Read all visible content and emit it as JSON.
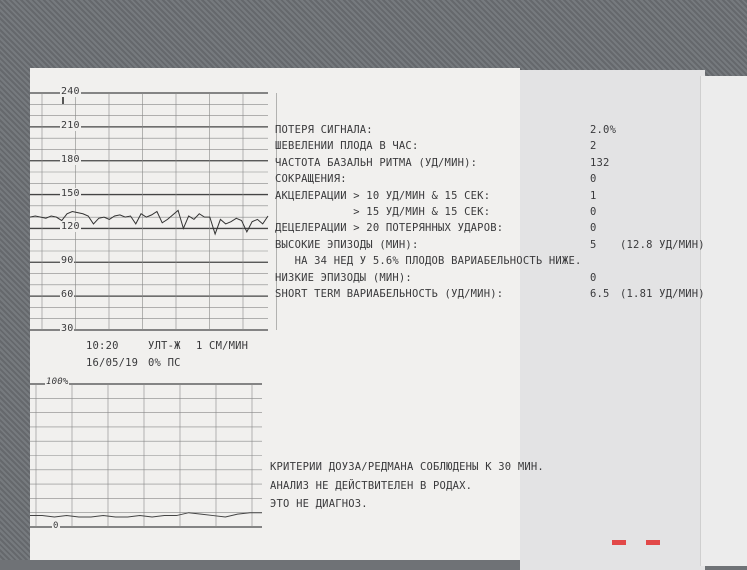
{
  "fhr_chart": {
    "y_ticks": [
      "240",
      "210",
      "180",
      "150",
      "120",
      "90",
      "60",
      "30"
    ],
    "time": "10:20",
    "mode": "УЛТ-Ж",
    "speed": "1 СМ/МИН",
    "date": "16/05/19",
    "signal_loss": "0% ПС"
  },
  "toco_chart": {
    "top_label": "100%",
    "bottom_label": "0"
  },
  "chart_data": [
    {
      "type": "line",
      "ylabel": "",
      "ylim": [
        30,
        240
      ],
      "y_ticks": [
        30,
        60,
        90,
        120,
        150,
        180,
        210,
        240
      ],
      "grid": true,
      "series": [
        {
          "values": [
            130,
            131,
            130,
            129,
            131,
            130,
            127,
            133,
            135,
            134,
            133,
            131,
            124,
            129,
            130,
            128,
            131,
            132,
            130,
            131,
            124,
            133,
            130,
            132,
            135,
            125,
            128,
            132,
            136,
            120,
            131,
            128,
            133,
            130,
            130,
            115,
            128,
            124,
            126,
            129,
            127,
            117,
            126,
            128,
            124,
            131
          ]
        }
      ]
    },
    {
      "type": "line",
      "ylabel": "",
      "ylim": [
        0,
        100
      ],
      "grid": true,
      "series": [
        {
          "values": [
            8,
            8,
            7,
            8,
            7,
            7,
            8,
            7,
            7,
            8,
            7,
            8,
            8,
            10,
            9,
            8,
            7,
            9,
            10,
            10
          ]
        }
      ]
    }
  ],
  "report": {
    "rows": [
      {
        "label": "ПОТЕРЯ СИГНАЛА:",
        "value": "2.0%",
        "extra": ""
      },
      {
        "label": "ШЕВЕЛЕНИИ ПЛОДА В ЧАС:",
        "value": "2",
        "extra": ""
      },
      {
        "label": "ЧАСТОТА БАЗАЛЬН РИТМА (УД/МИН):",
        "value": "132",
        "extra": ""
      },
      {
        "label": "СОКРАЩЕНИЯ:",
        "value": "0",
        "extra": ""
      },
      {
        "label": "АКЦЕЛЕРАЦИИ > 10 УД/МИН & 15 СЕК:",
        "value": "1",
        "extra": ""
      },
      {
        "label": "            > 15 УД/МИН & 15 СЕК:",
        "value": "0",
        "extra": ""
      },
      {
        "label": "ДЕЦЕЛЕРАЦИИ > 20 ПОТЕРЯННЫХ УДАРОВ:",
        "value": "0",
        "extra": ""
      },
      {
        "label": "ВЫСОКИЕ ЭПИЗОДЫ (МИН):",
        "value": "5",
        "extra": "(12.8 УД/МИН)"
      },
      {
        "label": "   НА 34 НЕД У 5.6% ПЛОДОВ ВАРИАБЕЛЬНОСТЬ НИЖЕ.",
        "value": "",
        "extra": ""
      },
      {
        "label": "НИЗКИЕ ЭПИЗОДЫ (МИН):",
        "value": "0",
        "extra": ""
      },
      {
        "label": "SHORT TERM ВАРИАБЕЛЬНОСТЬ (УД/МИН):",
        "value": "6.5",
        "extra": "(1.81 УД/МИН)"
      }
    ],
    "footer": [
      "КРИТЕРИИ ДОУЗА/РЕДМАНА СОБЛЮДЕНЫ К 30 МИН.",
      "АНАЛИЗ НЕ ДЕЙСТВИТЕЛЕН В РОДАХ.",
      "ЭТО НЕ ДИАГНОЗ."
    ]
  },
  "colors": {
    "paper": "#f1f0ee",
    "ink": "#3a3a3c",
    "grid": "#555555",
    "marker": "#e24848"
  }
}
